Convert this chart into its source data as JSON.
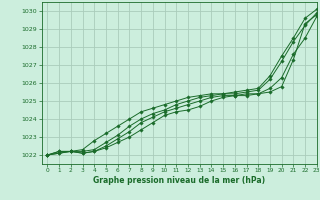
{
  "title": "Graphe pression niveau de la mer (hPa)",
  "background_color": "#cceedd",
  "grid_color": "#aaccbb",
  "line_color": "#1a6b2a",
  "xlim": [
    -0.5,
    23
  ],
  "ylim": [
    1021.5,
    1030.5
  ],
  "yticks": [
    1022,
    1023,
    1024,
    1025,
    1026,
    1027,
    1028,
    1029,
    1030
  ],
  "xticks": [
    0,
    1,
    2,
    3,
    4,
    5,
    6,
    7,
    8,
    9,
    10,
    11,
    12,
    13,
    14,
    15,
    16,
    17,
    18,
    19,
    20,
    21,
    22,
    23
  ],
  "series": [
    [
      1022.0,
      1022.1,
      1022.2,
      1022.1,
      1022.2,
      1022.4,
      1022.7,
      1023.0,
      1023.4,
      1023.8,
      1024.2,
      1024.4,
      1024.5,
      1024.7,
      1025.0,
      1025.2,
      1025.3,
      1025.3,
      1025.4,
      1025.5,
      1025.8,
      1027.3,
      1029.3,
      1029.8
    ],
    [
      1022.0,
      1022.1,
      1022.2,
      1022.1,
      1022.2,
      1022.5,
      1022.9,
      1023.3,
      1023.8,
      1024.1,
      1024.4,
      1024.6,
      1024.8,
      1025.0,
      1025.2,
      1025.3,
      1025.3,
      1025.4,
      1025.4,
      1025.7,
      1026.3,
      1027.6,
      1028.5,
      1029.7
    ],
    [
      1022.0,
      1022.2,
      1022.2,
      1022.2,
      1022.3,
      1022.7,
      1023.1,
      1023.6,
      1024.0,
      1024.3,
      1024.5,
      1024.8,
      1025.0,
      1025.2,
      1025.3,
      1025.4,
      1025.4,
      1025.5,
      1025.6,
      1026.2,
      1027.2,
      1028.3,
      1029.2,
      1029.9
    ],
    [
      1022.0,
      1022.2,
      1022.2,
      1022.3,
      1022.8,
      1023.2,
      1023.6,
      1024.0,
      1024.4,
      1024.6,
      1024.8,
      1025.0,
      1025.2,
      1025.3,
      1025.4,
      1025.4,
      1025.5,
      1025.6,
      1025.7,
      1026.4,
      1027.5,
      1028.5,
      1029.6,
      1030.1
    ]
  ]
}
